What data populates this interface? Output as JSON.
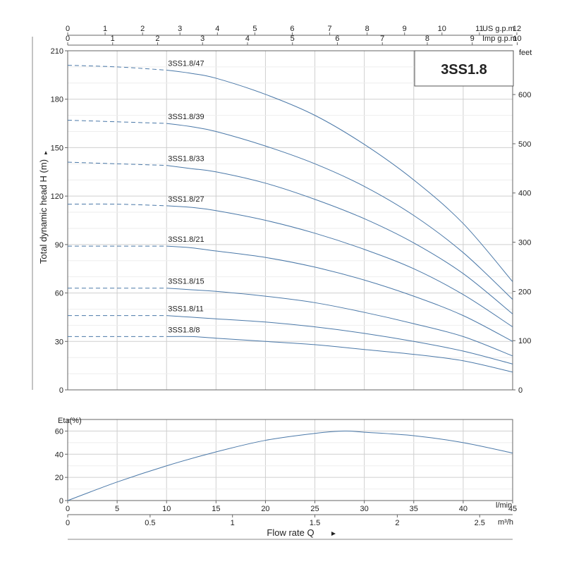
{
  "chart_data": [
    {
      "type": "line",
      "title": "3SS1.8",
      "ylabel": "Total dynamic head H (m)",
      "ylabel_right_unit": "feet",
      "ylim": [
        0,
        210
      ],
      "y_ticks": [
        0,
        30,
        60,
        90,
        120,
        150,
        180,
        210
      ],
      "y_right_ticks": [
        0,
        100,
        200,
        300,
        400,
        500,
        600
      ],
      "top_axes": [
        {
          "unit": "US g.p.m",
          "ticks": [
            "0",
            "1",
            "2",
            "3",
            "4",
            "5",
            "6",
            "7",
            "8",
            "9",
            "10",
            "11",
            "12"
          ]
        },
        {
          "unit": "Imp g.p.m",
          "ticks": [
            "0",
            "1",
            "2",
            "3",
            "4",
            "5",
            "6",
            "7",
            "8",
            "9",
            "10"
          ]
        }
      ],
      "xlim": [
        0,
        45
      ],
      "grid": true,
      "dashed_until_x": 10,
      "series": [
        {
          "name": "3SS1.8/47",
          "x": [
            0,
            5,
            10,
            12.5,
            15,
            20,
            25,
            30,
            35,
            40,
            45
          ],
          "y": [
            201,
            200,
            198,
            196,
            193,
            183,
            170,
            152,
            130,
            103,
            67
          ]
        },
        {
          "name": "3SS1.8/39",
          "x": [
            0,
            5,
            10,
            12.5,
            15,
            20,
            25,
            30,
            35,
            40,
            45
          ],
          "y": [
            167,
            166,
            165,
            163,
            160,
            151,
            140,
            126,
            108,
            85,
            56
          ]
        },
        {
          "name": "3SS1.8/33",
          "x": [
            0,
            5,
            10,
            12.5,
            15,
            20,
            25,
            30,
            35,
            40,
            45
          ],
          "y": [
            141,
            140,
            139,
            137,
            135,
            128,
            118,
            106,
            91,
            72,
            47
          ]
        },
        {
          "name": "3SS1.8/27",
          "x": [
            0,
            5,
            10,
            12.5,
            15,
            20,
            25,
            30,
            35,
            40,
            45
          ],
          "y": [
            115,
            115,
            114,
            113,
            111,
            105,
            97,
            87,
            75,
            59,
            39
          ]
        },
        {
          "name": "3SS1.8/21",
          "x": [
            0,
            5,
            10,
            12.5,
            15,
            20,
            25,
            30,
            35,
            40,
            45
          ],
          "y": [
            89,
            89,
            89,
            88,
            86,
            82,
            76,
            68,
            58,
            46,
            30
          ]
        },
        {
          "name": "3SS1.8/15",
          "x": [
            0,
            5,
            10,
            12.5,
            15,
            20,
            25,
            30,
            35,
            40,
            45
          ],
          "y": [
            63,
            63,
            63,
            62,
            61,
            58,
            54,
            48,
            41,
            33,
            21
          ]
        },
        {
          "name": "3SS1.8/11",
          "x": [
            0,
            5,
            10,
            12.5,
            15,
            20,
            25,
            30,
            35,
            40,
            45
          ],
          "y": [
            46,
            46,
            46,
            45,
            44,
            42,
            39,
            35,
            30,
            24,
            16
          ]
        },
        {
          "name": "3SS1.8/8",
          "x": [
            0,
            5,
            10,
            12.5,
            15,
            20,
            25,
            30,
            35,
            40,
            45
          ],
          "y": [
            33,
            33,
            33,
            33,
            32,
            30,
            28,
            25,
            22,
            18,
            11
          ]
        }
      ]
    },
    {
      "type": "line",
      "ylabel": "Eta(%)",
      "ylim": [
        0,
        70
      ],
      "y_ticks": [
        0,
        20,
        40,
        60
      ],
      "xlim": [
        0,
        45
      ],
      "x_ticks": [
        0,
        5,
        10,
        15,
        20,
        25,
        30,
        35,
        40,
        45
      ],
      "x_unit": "l/min",
      "x2_ticks": [
        "0",
        "0.5",
        "1",
        "1.5",
        "2",
        "2.5"
      ],
      "x2_unit": "m³/h",
      "xlabel": "Flow rate Q",
      "grid": true,
      "series": [
        {
          "name": "",
          "x": [
            0,
            5,
            10,
            15,
            20,
            25,
            28,
            30,
            35,
            40,
            45
          ],
          "y": [
            0,
            16,
            30,
            42,
            52,
            58,
            60,
            59,
            56,
            50,
            41
          ]
        }
      ]
    }
  ]
}
